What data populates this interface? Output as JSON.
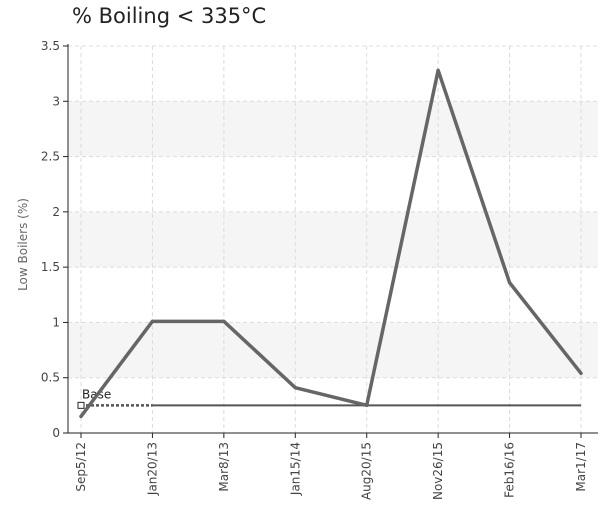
{
  "chart_data": {
    "type": "line",
    "title": "% Boiling < 335°C",
    "xlabel": "",
    "ylabel": "Low Boilers (%)",
    "categories": [
      "Sep5/12",
      "Jan20/13",
      "Mar8/13",
      "Jan15/14",
      "Aug20/15",
      "Nov26/15",
      "Feb16/16",
      "Mar1/17"
    ],
    "series": [
      {
        "name": "",
        "values": [
          0.15,
          1.01,
          1.01,
          0.41,
          0.25,
          3.28,
          1.36,
          0.54
        ],
        "color": "#666666"
      }
    ],
    "baseline": {
      "label": "Base",
      "value": 0.25,
      "color": "#555555"
    },
    "ylim": [
      0,
      3.5
    ],
    "yticks": [
      0,
      0.5,
      1,
      1.5,
      2,
      2.5,
      3,
      3.5
    ],
    "ytick_labels": [
      "0",
      "0.5",
      "1",
      "1.5",
      "2",
      "2.5",
      "3",
      "3.5"
    ],
    "grid": true,
    "band_color": "#f5f5f5"
  }
}
